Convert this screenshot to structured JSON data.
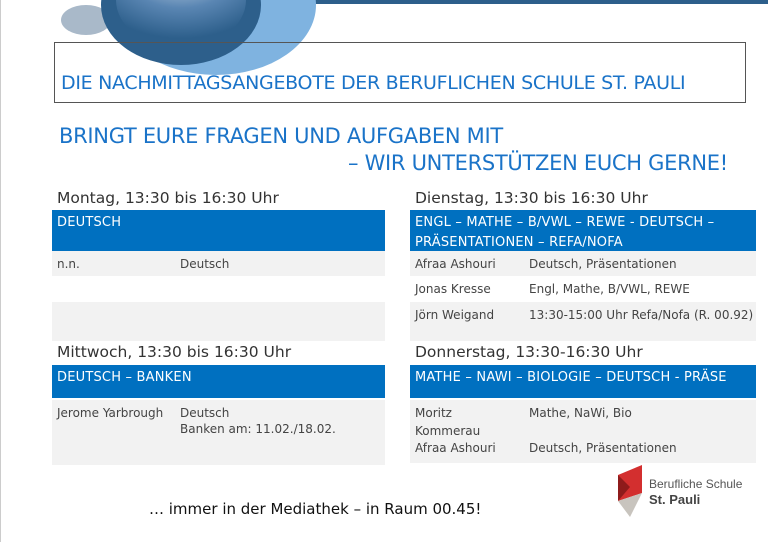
{
  "header": {
    "title": "DIE NACHMITTAGSANGEBOTE DER BERUFLICHEN SCHULE ST. PAULI",
    "subtitle_line1": "BRINGT EURE FRAGEN UND AUFGABEN MIT",
    "subtitle_line2": "– WIR UNTERSTÜTZEN EUCH GERNE!"
  },
  "days": [
    {
      "heading": "Montag, 13:30 bis 16:30 Uhr",
      "subjects": "DEUTSCH",
      "rows": [
        {
          "name": "n.n.",
          "info": "Deutsch"
        },
        {
          "name": "",
          "info": ""
        },
        {
          "name": "",
          "info": ""
        }
      ]
    },
    {
      "heading": "Dienstag, 13:30 bis 16:30 Uhr",
      "subjects": "ENGL – MATHE – B/VWL – REWE - DEUTSCH – PRÄSENTATIONEN – REFA/NOFA",
      "rows": [
        {
          "name": "Afraa Ashouri",
          "info": "Deutsch, Präsentationen"
        },
        {
          "name": "Jonas Kresse",
          "info": "Engl, Mathe, B/VWL, REWE"
        },
        {
          "name": "Jörn Weigand",
          "info": "13:30-15:00 Uhr Refa/Nofa (R. 00.92)"
        }
      ]
    },
    {
      "heading": "Mittwoch, 13:30 bis 16:30 Uhr",
      "subjects": "DEUTSCH – BANKEN",
      "rows": [
        {
          "name": "Jerome Yarbrough",
          "info": "Deutsch",
          "info2": "Banken am: 11.02./18.02."
        }
      ]
    },
    {
      "heading": "Donnerstag, 13:30-16:30 Uhr",
      "subjects": "MATHE – NAWI – BIOLOGIE – DEUTSCH - PRÄSE",
      "rows": [
        {
          "name": "Moritz",
          "name2": "Kommerau",
          "info": "Mathe, NaWi, Bio"
        },
        {
          "name": "Afraa Ashouri",
          "info": "Deutsch, Präsentationen"
        }
      ]
    }
  ],
  "footer": "… immer in der Mediathek – in Raum 00.45!",
  "logo": {
    "line1": "Berufliche Schule",
    "line2": "St. Pauli"
  },
  "colors": {
    "accent": "#0070c0",
    "title": "#1a73c8",
    "row": "#f2f2f2"
  }
}
